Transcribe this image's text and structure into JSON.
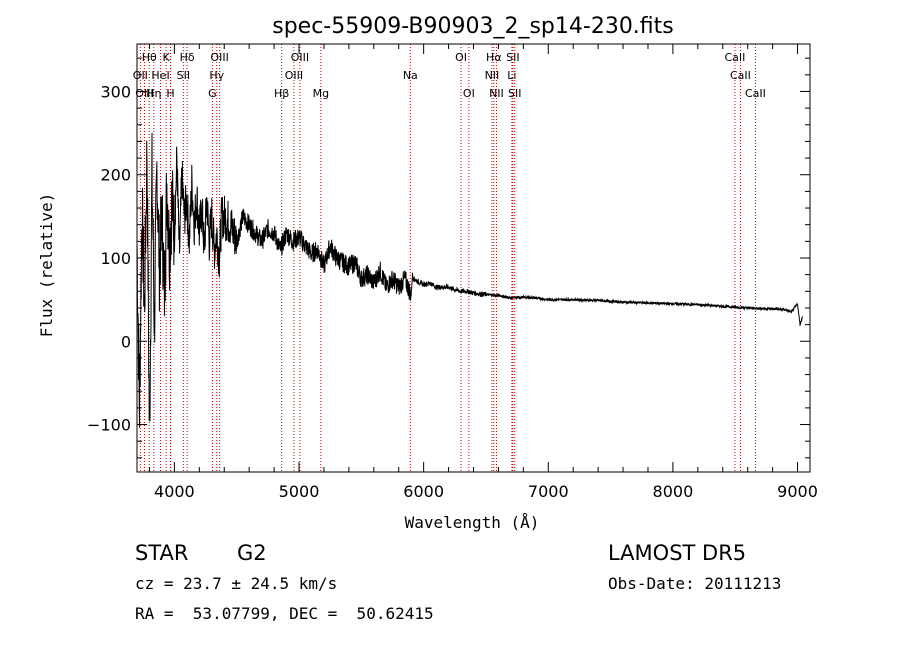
{
  "chart_data": {
    "type": "line",
    "title": "spec-55909-B90903_2_sp14-230.fits",
    "xlabel": "Wavelength (Å)",
    "ylabel": "Flux (relative)",
    "xlim": [
      3700,
      9100
    ],
    "ylim": [
      -157,
      357
    ],
    "xticks": [
      4000,
      5000,
      6000,
      7000,
      8000,
      9000
    ],
    "xtick_labels": [
      "4000",
      "5000",
      "6000",
      "7000",
      "8000",
      "9000"
    ],
    "yticks": [
      -100,
      0,
      100,
      200,
      300
    ],
    "ytick_labels": [
      "−100",
      "0",
      "100",
      "200",
      "300"
    ],
    "grid": false,
    "series": [
      {
        "x": [
          3700,
          3720,
          3740,
          3760,
          3780,
          3800,
          3820,
          3840,
          3860,
          3880,
          3900,
          3920,
          3940,
          3960,
          3980,
          4000,
          4020,
          4040,
          4060,
          4080,
          4100,
          4120,
          4140,
          4160,
          4180,
          4200,
          4220,
          4240,
          4260,
          4280,
          4300,
          4320,
          4340,
          4360,
          4380,
          4400,
          4450,
          4500,
          4550,
          4600,
          4650,
          4700,
          4750,
          4800,
          4850,
          4900,
          4950,
          5000,
          5050,
          5100,
          5150,
          5200,
          5250,
          5300,
          5350,
          5400,
          5450,
          5500,
          5550,
          5600,
          5650,
          5700,
          5750,
          5800,
          5850,
          5900,
          5910,
          5920,
          5950,
          6000,
          6050,
          6100,
          6150,
          6200,
          6250,
          6300,
          6350,
          6400,
          6500,
          6600,
          6700,
          6800,
          6900,
          7000,
          7200,
          7400,
          7600,
          7800,
          8000,
          8200,
          8400,
          8600,
          8800,
          8900,
          8950,
          9000,
          9020,
          9040
        ],
        "y": [
          120,
          -80,
          160,
          40,
          230,
          -120,
          200,
          20,
          210,
          90,
          150,
          60,
          190,
          110,
          170,
          130,
          220,
          100,
          200,
          150,
          170,
          120,
          190,
          140,
          175,
          130,
          160,
          110,
          170,
          120,
          150,
          110,
          130,
          100,
          150,
          150,
          140,
          120,
          150,
          140,
          130,
          120,
          135,
          130,
          110,
          130,
          120,
          125,
          115,
          105,
          110,
          90,
          115,
          100,
          95,
          90,
          95,
          75,
          80,
          70,
          85,
          65,
          75,
          65,
          75,
          55,
          80,
          75,
          72,
          68,
          70,
          65,
          65,
          65,
          62,
          60,
          60,
          58,
          56,
          55,
          52,
          53,
          52,
          50,
          50,
          49,
          47,
          46,
          45,
          44,
          42,
          40,
          39,
          38,
          35,
          45,
          20,
          30
        ]
      }
    ],
    "lines": [
      {
        "label": "Hθ",
        "x": 3798,
        "row": 0
      },
      {
        "label": "K",
        "x": 3934,
        "row": 0
      },
      {
        "label": "Hδ",
        "x": 4102,
        "row": 0
      },
      {
        "label": "OIII",
        "x": 4363,
        "row": 0
      },
      {
        "label": "OIII",
        "x": 5007,
        "row": 0
      },
      {
        "label": "OI",
        "x": 6300,
        "row": 0
      },
      {
        "label": "Hα",
        "x": 6563,
        "row": 0
      },
      {
        "label": "SII",
        "x": 6716,
        "row": 0
      },
      {
        "label": "CaII",
        "x": 8498,
        "row": 0
      },
      {
        "label": "OII",
        "x": 3727,
        "row": 1
      },
      {
        "label": "HeI",
        "x": 3889,
        "row": 1
      },
      {
        "label": "SII",
        "x": 4072,
        "row": 1
      },
      {
        "label": "Hγ",
        "x": 4340,
        "row": 1
      },
      {
        "label": "OIII",
        "x": 4959,
        "row": 1
      },
      {
        "label": "Na",
        "x": 5893,
        "row": 1
      },
      {
        "label": "NII",
        "x": 6548,
        "row": 1
      },
      {
        "label": "Li",
        "x": 6708,
        "row": 1
      },
      {
        "label": "CaII",
        "x": 8542,
        "row": 1
      },
      {
        "label": "OIII",
        "x": 3760,
        "row": 2
      },
      {
        "label": "Hη",
        "x": 3835,
        "row": 2
      },
      {
        "label": "H",
        "x": 3969,
        "row": 2
      },
      {
        "label": "G",
        "x": 4305,
        "row": 2
      },
      {
        "label": "Hβ",
        "x": 4861,
        "row": 2
      },
      {
        "label": "Mg",
        "x": 5175,
        "row": 2
      },
      {
        "label": "OI",
        "x": 6363,
        "row": 2
      },
      {
        "label": "NII",
        "x": 6584,
        "row": 2
      },
      {
        "label": "SII",
        "x": 6731,
        "row": 2
      },
      {
        "label": "CaII",
        "x": 8662,
        "row": 2
      }
    ],
    "colors": {
      "spectrum": "#000000",
      "lines": "#c00000",
      "axes": "#000000"
    }
  },
  "info": {
    "class": "STAR",
    "subclass": "G2",
    "survey": "LAMOST DR5",
    "cz": "cz = 23.7 ± 24.5 km/s",
    "obs_date": "Obs-Date: 20111213",
    "radec": "RA =  53.07799, DEC =  50.62415"
  }
}
